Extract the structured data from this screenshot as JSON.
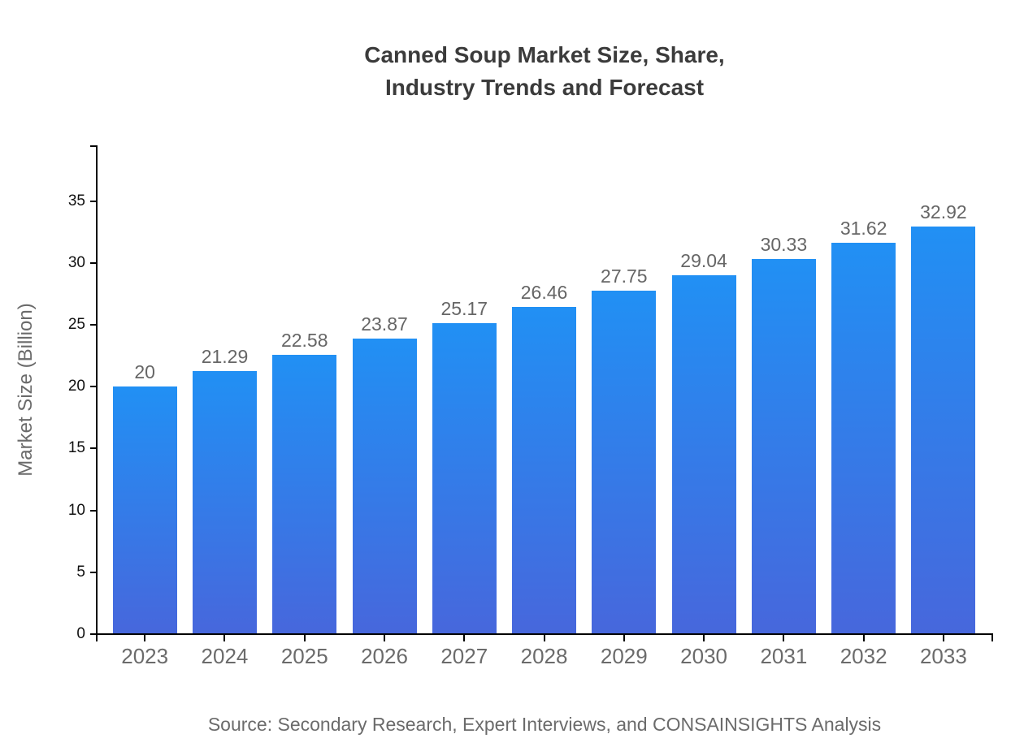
{
  "title": {
    "line1": "Canned Soup Market Size, Share,",
    "line2": "Industry Trends and Forecast"
  },
  "source": "Source: Secondary Research, Expert Interviews, and CONSAINSIGHTS Analysis",
  "chart_data": {
    "type": "bar",
    "title": "Canned Soup Market Size, Share, Industry Trends and Forecast",
    "categories": [
      "2023",
      "2024",
      "2025",
      "2026",
      "2027",
      "2028",
      "2029",
      "2030",
      "2031",
      "2032",
      "2033"
    ],
    "values": [
      20,
      21.29,
      22.58,
      23.87,
      25.17,
      26.46,
      27.75,
      29.04,
      30.33,
      31.62,
      32.92
    ],
    "value_labels": [
      "20",
      "21.29",
      "22.58",
      "23.87",
      "25.17",
      "26.46",
      "27.75",
      "29.04",
      "30.33",
      "31.62",
      "32.92"
    ],
    "xlabel": "",
    "ylabel": "Market Size (Billion)",
    "ylim": [
      0,
      39.5
    ],
    "yticks": [
      0,
      5,
      10,
      15,
      20,
      25,
      30,
      35
    ],
    "grid": false,
    "legend": "none",
    "colors": {
      "bar_gradient_top": "#2190f4",
      "bar_gradient_bottom": "#4767dc",
      "axis": "#000000",
      "title_text": "#3b3b3b",
      "y_tick_text": "#111111",
      "x_tick_text": "#6b6b6b",
      "value_label_text": "#666666",
      "caption_text": "#6b6b6b",
      "background": "#ffffff"
    }
  }
}
